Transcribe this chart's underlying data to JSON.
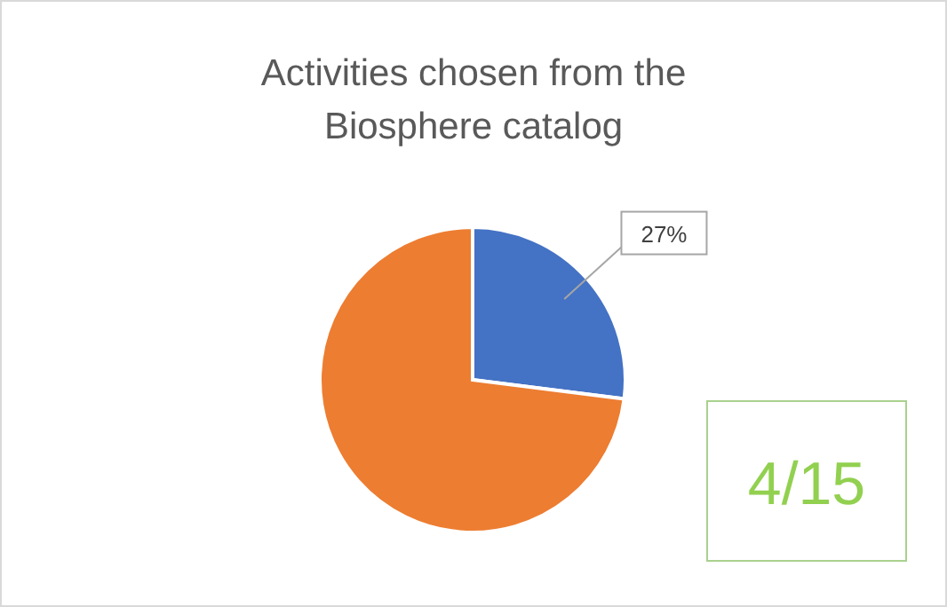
{
  "chart_data": {
    "type": "pie",
    "title": "Activities chosen from the Biosphere catalog",
    "categories": [
      null,
      null
    ],
    "values": [
      27,
      73
    ],
    "colors": [
      "#4472c4",
      "#ed7d31"
    ],
    "value_labels": [
      "27%",
      null
    ],
    "annotations": [
      "4/15"
    ]
  }
}
